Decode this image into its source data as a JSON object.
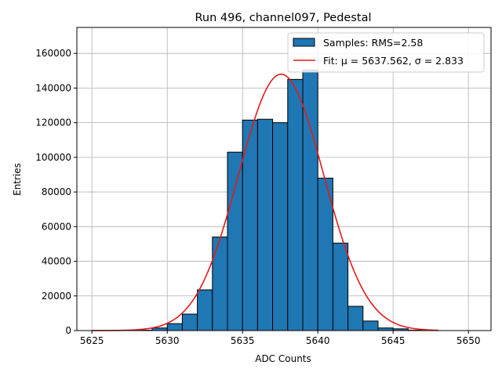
{
  "chart_data": {
    "type": "bar",
    "title": "Run 496, channel097, Pedestal",
    "xlabel": "ADC Counts",
    "ylabel": "Entries",
    "xlim": [
      5624,
      5651.5
    ],
    "ylim": [
      0,
      175000
    ],
    "xticks": [
      5625,
      5630,
      5635,
      5640,
      5645,
      5650
    ],
    "yticks": [
      0,
      20000,
      40000,
      60000,
      80000,
      100000,
      120000,
      140000,
      160000
    ],
    "grid": true,
    "legend_position": "top-right",
    "histogram": {
      "name": "Samples: RMS=2.58",
      "color": "#1f77b4",
      "bins": [
        {
          "start": 5628,
          "end": 5629,
          "value": 200
        },
        {
          "start": 5629,
          "end": 5630,
          "value": 1500
        },
        {
          "start": 5630,
          "end": 5631,
          "value": 4000
        },
        {
          "start": 5631,
          "end": 5632,
          "value": 9500
        },
        {
          "start": 5632,
          "end": 5633,
          "value": 23500
        },
        {
          "start": 5633,
          "end": 5634,
          "value": 54000
        },
        {
          "start": 5634,
          "end": 5635,
          "value": 103000
        },
        {
          "start": 5635,
          "end": 5636,
          "value": 121500
        },
        {
          "start": 5636,
          "end": 5637,
          "value": 122000
        },
        {
          "start": 5637,
          "end": 5638,
          "value": 120000
        },
        {
          "start": 5638,
          "end": 5639,
          "value": 145000
        },
        {
          "start": 5639,
          "end": 5640,
          "value": 150500
        },
        {
          "start": 5640,
          "end": 5641,
          "value": 88000
        },
        {
          "start": 5641,
          "end": 5642,
          "value": 50500
        },
        {
          "start": 5642,
          "end": 5643,
          "value": 14000
        },
        {
          "start": 5643,
          "end": 5644,
          "value": 5500
        },
        {
          "start": 5644,
          "end": 5645,
          "value": 1500
        },
        {
          "start": 5645,
          "end": 5646,
          "value": 1000
        },
        {
          "start": 5646,
          "end": 5647,
          "value": 200
        }
      ]
    },
    "fit": {
      "name": "Fit: μ = 5637.562, σ = 2.833",
      "mu": 5637.562,
      "sigma": 2.833,
      "amplitude": 148000,
      "x_range": [
        5625,
        5648
      ],
      "color": "#e41a1c"
    }
  }
}
